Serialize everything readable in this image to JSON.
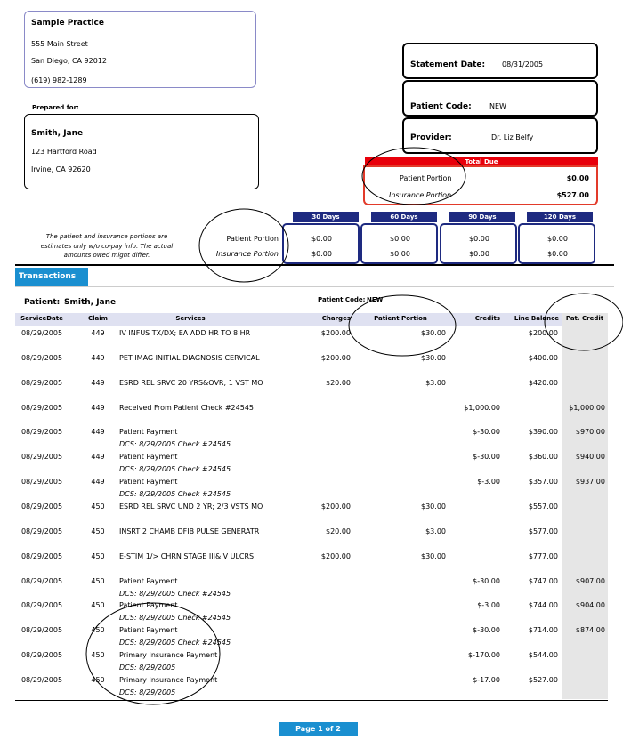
{
  "practice": {
    "name": "Sample Practice",
    "address1": "555 Main Street",
    "address2": "San Diego, CA 92012",
    "phone": "(619) 982-1289"
  },
  "prepared_for": {
    "label": "Prepared for:",
    "name": "Smith, Jane",
    "address1": "123 Hartford Road",
    "address2": "Irvine, CA 92620"
  },
  "statement": {
    "date_label": "Statement Date:",
    "date": "08/31/2005",
    "patient_code_label": "Patient Code:",
    "patient_code": "NEW",
    "provider_label": "Provider:",
    "provider": "Dr. Liz Belfy"
  },
  "total_due": {
    "title": "Total Due",
    "patient_label": "Patient Portion",
    "patient_value": "$0.00",
    "insurance_label": "Insurance Portion",
    "insurance_value": "$527.00"
  },
  "aging": {
    "note": "The patient and insurance portions are estimates only w/o co-pay info. The actual amounts owed might differ.",
    "patient_label": "Patient Portion",
    "insurance_label": "Insurance Portion",
    "columns": [
      {
        "header": "30 Days",
        "patient": "$0.00",
        "insurance": "$0.00"
      },
      {
        "header": "60 Days",
        "patient": "$0.00",
        "insurance": "$0.00"
      },
      {
        "header": "90 Days",
        "patient": "$0.00",
        "insurance": "$0.00"
      },
      {
        "header": "120 Days",
        "patient": "$0.00",
        "insurance": "$0.00"
      }
    ]
  },
  "transactions": {
    "title": "Transactions",
    "patient_label": "Patient:",
    "patient_name": "Smith, Jane",
    "patient_code_label": "Patient Code:",
    "patient_code": "NEW",
    "headers": [
      "ServiceDate",
      "Claim",
      "Services",
      "Charges",
      "Patient Portion",
      "Credits",
      "Line Balance",
      "Pat. Credit"
    ],
    "rows": [
      {
        "date": "08/29/2005",
        "claim": "449",
        "service": "IV INFUS TX/DX; EA ADD HR TO 8 HR",
        "charges": "$200.00",
        "patient_portion": "$30.00",
        "line_balance": "$200.00"
      },
      {
        "date": "08/29/2005",
        "claim": "449",
        "service": "PET IMAG INITIAL DIAGNOSIS CERVICAL",
        "charges": "$200.00",
        "patient_portion": "$30.00",
        "line_balance": "$400.00"
      },
      {
        "date": "08/29/2005",
        "claim": "449",
        "service": "ESRD REL SRVC 20 YRS&OVR; 1 VST MO",
        "charges": "$20.00",
        "patient_portion": "$3.00",
        "line_balance": "$420.00"
      },
      {
        "date": "08/29/2005",
        "claim": "449",
        "service": "Received From Patient Check #24545",
        "credits": "$1,000.00",
        "pat_credit": "$1,000.00"
      },
      {
        "date": "08/29/2005",
        "claim": "449",
        "service": "Patient Payment",
        "note": "DCS: 8/29/2005 Check #24545",
        "credits": "$-30.00",
        "line_balance": "$390.00",
        "pat_credit": "$970.00"
      },
      {
        "date": "08/29/2005",
        "claim": "449",
        "service": "Patient Payment",
        "note": "DCS: 8/29/2005 Check #24545",
        "credits": "$-30.00",
        "line_balance": "$360.00",
        "pat_credit": "$940.00"
      },
      {
        "date": "08/29/2005",
        "claim": "449",
        "service": "Patient Payment",
        "note": "DCS: 8/29/2005 Check #24545",
        "credits": "$-3.00",
        "line_balance": "$357.00",
        "pat_credit": "$937.00"
      },
      {
        "date": "08/29/2005",
        "claim": "450",
        "service": "ESRD REL SRVC UND 2 YR; 2/3 VSTS MO",
        "charges": "$200.00",
        "patient_portion": "$30.00",
        "line_balance": "$557.00"
      },
      {
        "date": "08/29/2005",
        "claim": "450",
        "service": "INSRT 2 CHAMB DFIB PULSE GENERATR",
        "charges": "$20.00",
        "patient_portion": "$3.00",
        "line_balance": "$577.00"
      },
      {
        "date": "08/29/2005",
        "claim": "450",
        "service": "E-STIM 1/> CHRN STAGE III&IV ULCRS",
        "charges": "$200.00",
        "patient_portion": "$30.00",
        "line_balance": "$777.00"
      },
      {
        "date": "08/29/2005",
        "claim": "450",
        "service": "Patient Payment",
        "note": "DCS: 8/29/2005 Check #24545",
        "credits": "$-30.00",
        "line_balance": "$747.00",
        "pat_credit": "$907.00"
      },
      {
        "date": "08/29/2005",
        "claim": "450",
        "service": "Patient Payment",
        "note": "DCS: 8/29/2005 Check #24545",
        "credits": "$-3.00",
        "line_balance": "$744.00",
        "pat_credit": "$904.00"
      },
      {
        "date": "08/29/2005",
        "claim": "450",
        "service": "Patient Payment",
        "note": "DCS: 8/29/2005 Check #24545",
        "credits": "$-30.00",
        "line_balance": "$714.00",
        "pat_credit": "$874.00"
      },
      {
        "date": "08/29/2005",
        "claim": "450",
        "service": "Primary Insurance Payment",
        "note": "DCS: 8/29/2005",
        "credits": "$-170.00",
        "line_balance": "$544.00"
      },
      {
        "date": "08/29/2005",
        "claim": "450",
        "service": "Primary Insurance Payment",
        "note": "DCS: 8/29/2005",
        "credits": "$-17.00",
        "line_balance": "$527.00"
      }
    ]
  },
  "footer": {
    "page": "Page 1 of 2"
  }
}
